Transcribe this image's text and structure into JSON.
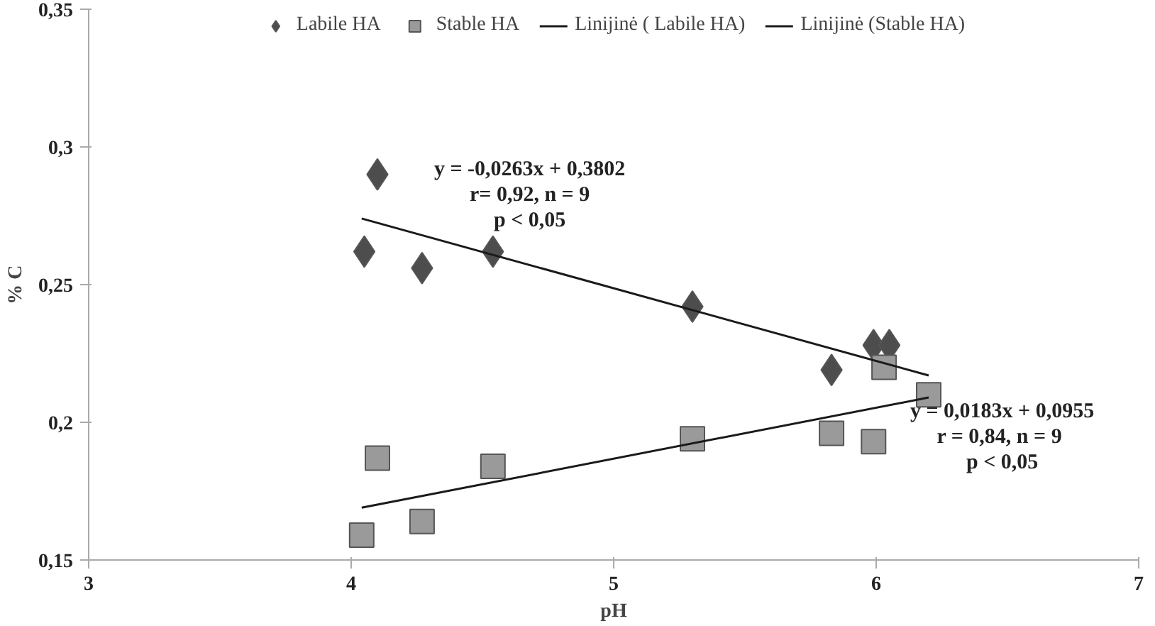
{
  "chart_data": {
    "type": "scatter",
    "xlabel": "pH",
    "ylabel": "% C",
    "xlim": [
      3,
      7
    ],
    "xticks": [
      3,
      4,
      5,
      6,
      7
    ],
    "ylim": [
      0.15,
      0.35
    ],
    "yticks": [
      {
        "value": 0.15,
        "label": "0,15"
      },
      {
        "value": 0.2,
        "label": "0,2"
      },
      {
        "value": 0.25,
        "label": "0,25"
      },
      {
        "value": 0.3,
        "label": "0,3"
      },
      {
        "value": 0.35,
        "label": "0,35"
      }
    ],
    "grid": false,
    "legend": "top",
    "series": [
      {
        "name": "Labile HA",
        "marker": "diamond",
        "color": "#4d4d4d",
        "x": [
          4.05,
          4.1,
          4.27,
          4.54,
          5.3,
          5.83,
          5.99,
          6.05
        ],
        "values": [
          0.262,
          0.29,
          0.256,
          0.262,
          0.242,
          0.219,
          0.228,
          0.228
        ]
      },
      {
        "name": "Stable HA",
        "marker": "square",
        "color": "#9a9a9a",
        "x": [
          4.04,
          4.1,
          4.27,
          4.54,
          5.3,
          5.83,
          5.99,
          6.03,
          6.2
        ],
        "values": [
          0.159,
          0.187,
          0.164,
          0.184,
          0.194,
          0.196,
          0.193,
          0.22,
          0.21
        ]
      },
      {
        "name": "Linijinė ( Labile HA)",
        "type": "line",
        "color": "#1a1a1a",
        "x": [
          4.04,
          6.2
        ],
        "values": [
          0.274,
          0.217
        ]
      },
      {
        "name": "Linijinė (Stable HA)",
        "type": "line",
        "color": "#1a1a1a",
        "x": [
          4.04,
          6.2
        ],
        "values": [
          0.169,
          0.209
        ]
      }
    ],
    "annotations": [
      "y = -0,0263x + 0,3802\nr= 0,92, n = 9\np < 0,05",
      "y = 0,0183x + 0,0955\nr = 0,84,  n = 9\np < 0,05"
    ]
  }
}
